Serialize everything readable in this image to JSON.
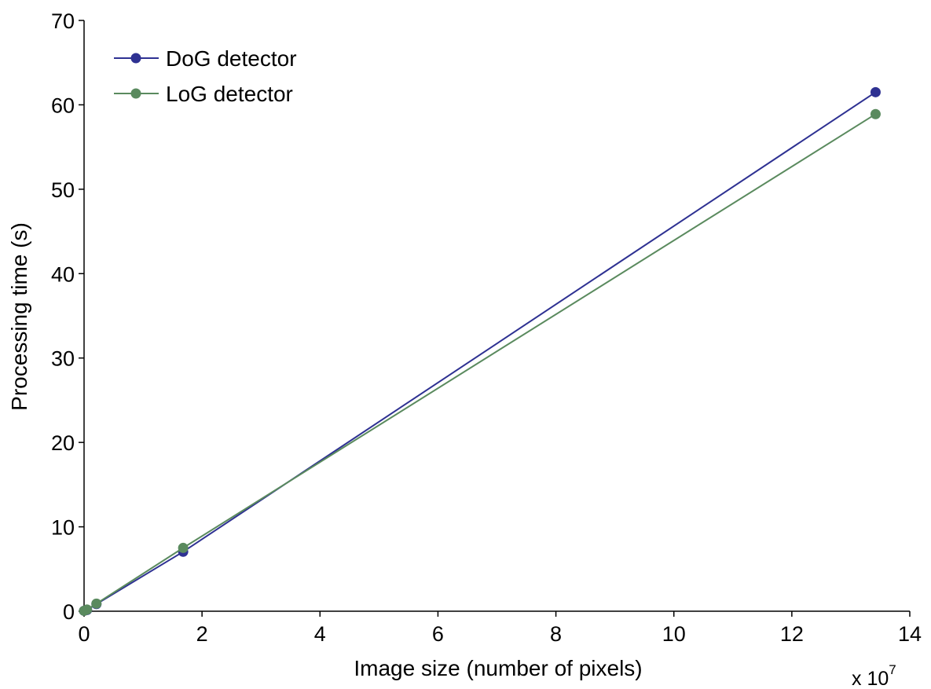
{
  "chart_data": {
    "type": "line",
    "title": "",
    "xlabel": "Image size (number of pixels)",
    "ylabel": "Processing time (s)",
    "x_multiplier_label": "x 10",
    "x_multiplier_exponent": "7",
    "xlim": [
      0,
      14
    ],
    "ylim": [
      0,
      70
    ],
    "xticks": [
      "0",
      "2",
      "4",
      "6",
      "8",
      "10",
      "12",
      "14"
    ],
    "yticks": [
      "0",
      "10",
      "20",
      "30",
      "40",
      "50",
      "60",
      "70"
    ],
    "grid": false,
    "legend_position": "top-left",
    "series": [
      {
        "name": "DoG detector",
        "color": "#2e3192",
        "marker": "circle",
        "x": [
          0.0,
          0.05,
          0.21,
          1.68,
          13.42
        ],
        "y": [
          0.05,
          0.15,
          0.85,
          7.05,
          61.5
        ]
      },
      {
        "name": "LoG detector",
        "color": "#5a8a5e",
        "marker": "circle",
        "x": [
          0.0,
          0.05,
          0.21,
          1.68,
          13.42
        ],
        "y": [
          0.05,
          0.2,
          0.9,
          7.5,
          58.9
        ]
      }
    ]
  }
}
